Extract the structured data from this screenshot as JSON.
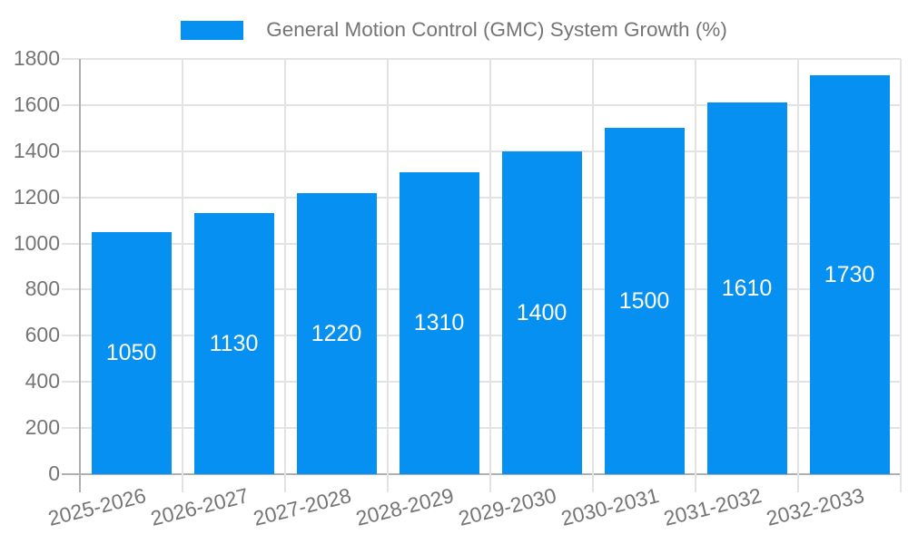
{
  "chart_data": {
    "type": "bar",
    "title": "General Motion Control (GMC) System Growth (%)",
    "legend": {
      "label": "General Motion Control (GMC) System Growth (%)",
      "position": "top"
    },
    "categories": [
      "2025-2026",
      "2026-2027",
      "2027-2028",
      "2028-2029",
      "2029-2030",
      "2030-2031",
      "2031-2032",
      "2032-2033"
    ],
    "values": [
      1050,
      1130,
      1220,
      1310,
      1400,
      1500,
      1610,
      1730
    ],
    "value_labels": [
      "1050",
      "1130",
      "1220",
      "1310",
      "1400",
      "1500",
      "1610",
      "1730"
    ],
    "xlabel": "",
    "ylabel": "",
    "ylim": [
      0,
      1800
    ],
    "yticks": [
      0,
      200,
      400,
      600,
      800,
      1000,
      1200,
      1400,
      1600,
      1800
    ],
    "grid": true,
    "x_label_rotation_deg": -14,
    "colors": {
      "bar": "#0690f2",
      "bar_value_text": "#ffffff",
      "axis_text": "#757575",
      "gridline": "#e3e3e3",
      "axis_line": "#b0b0b0",
      "background": "#ffffff"
    }
  }
}
